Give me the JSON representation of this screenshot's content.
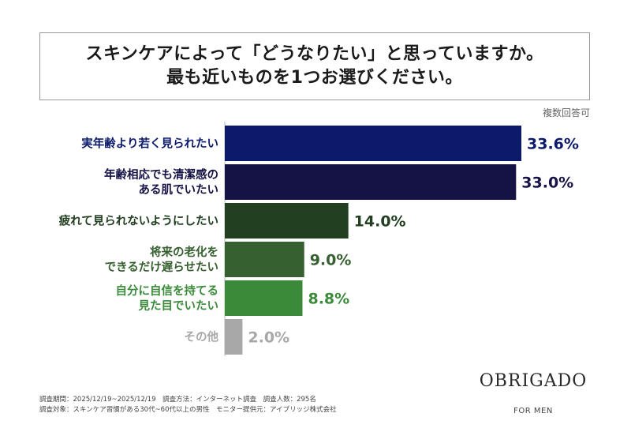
{
  "title": {
    "line1": "スキンケアによって「どうなりたい」と思っていますか。",
    "line2": "最も近いものを1つお選びください。"
  },
  "note": "複数回答可",
  "chart_data": {
    "type": "bar",
    "orientation": "horizontal",
    "categories": [
      [
        "実年齢より若く見られたい"
      ],
      [
        "年齢相応でも清潔感の",
        "ある肌でいたい"
      ],
      [
        "疲れて見られないようにしたい"
      ],
      [
        "将来の老化を",
        "できるだけ遅らせたい"
      ],
      [
        "自分に自信を持てる",
        "見た目でいたい"
      ],
      [
        "その他"
      ]
    ],
    "values": [
      33.6,
      33.0,
      14.0,
      9.0,
      8.8,
      2.0
    ],
    "value_labels": [
      "33.6%",
      "33.0%",
      "14.0%",
      "9.0%",
      "8.8%",
      "2.0%"
    ],
    "colors": [
      "#0c1a6c",
      "#151245",
      "#223f22",
      "#36602f",
      "#3a8a3a",
      "#a8a8a8"
    ],
    "label_colors": [
      "#0c1a6c",
      "#151245",
      "#223f22",
      "#36602f",
      "#3a8a3a",
      "#a8a8a8"
    ],
    "xlim": [
      0,
      33.6
    ],
    "grid": false
  },
  "footer": {
    "line1": "調査期間：2025/12/19~2025/12/19　調査方法：インターネット調査　調査人数：295名",
    "line2": "調査対象：スキンケア習慣がある30代~60代以上の男性　モニター提供元：アイブリッジ株式会社"
  },
  "logo": {
    "name": "OBRIGADO",
    "sub": "FOR MEN"
  }
}
